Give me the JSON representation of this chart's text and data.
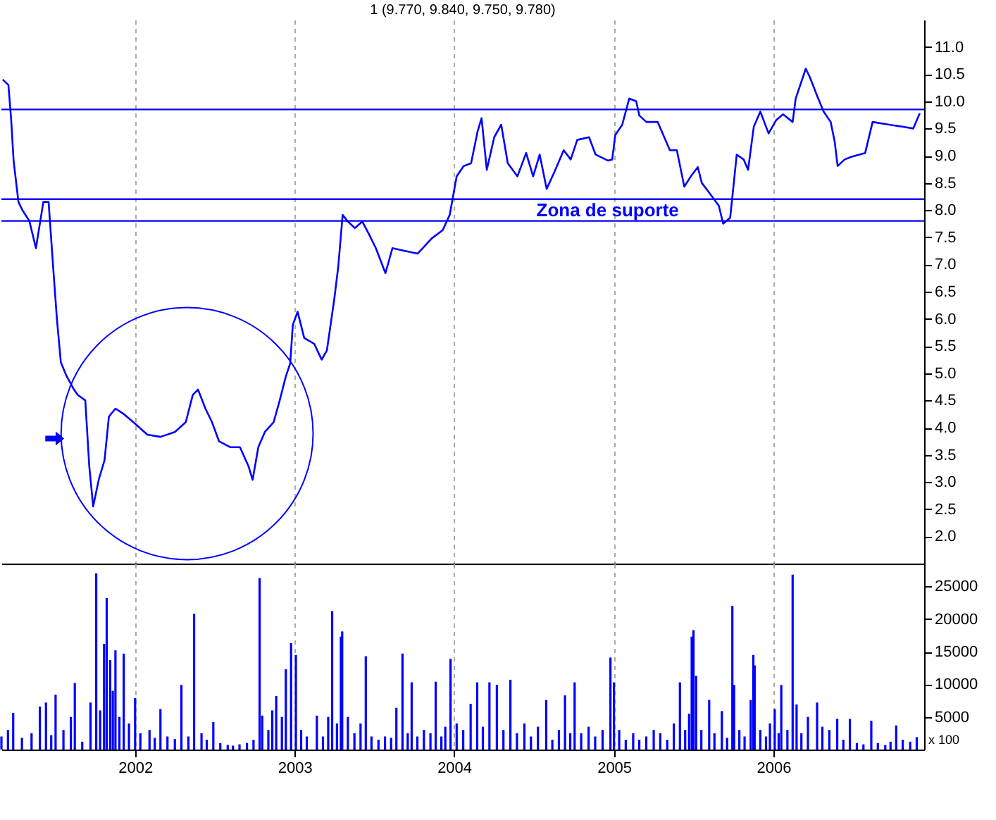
{
  "chart_data": [
    {
      "type": "line",
      "title": "1 (9.770, 9.840, 9.750, 9.780)",
      "x": [
        "2001-03-04",
        "2001-03-17",
        "2001-03-23",
        "2001-03-29",
        "2001-04-09",
        "2001-04-18",
        "2001-05-04",
        "2001-05-19",
        "2001-06-05",
        "2001-06-17",
        "2001-06-27",
        "2001-07-06",
        "2001-07-15",
        "2001-07-28",
        "2001-08-14",
        "2001-08-23",
        "2001-09-09",
        "2001-09-18",
        "2001-09-27",
        "2001-10-10",
        "2001-10-23",
        "2001-11-02",
        "2001-11-17",
        "2001-12-06",
        "2001-12-28",
        "2002-01-29",
        "2002-02-28",
        "2002-04-02",
        "2002-04-27",
        "2002-05-13",
        "2002-05-25",
        "2002-06-11",
        "2002-06-26",
        "2002-07-12",
        "2002-08-07",
        "2002-08-29",
        "2002-09-18",
        "2002-09-27",
        "2002-10-10",
        "2002-10-25",
        "2002-11-14",
        "2002-11-27",
        "2002-12-12",
        "2002-12-22",
        "2002-12-28",
        "2003-01-08",
        "2003-01-23",
        "2003-02-15",
        "2003-03-04",
        "2003-03-16",
        "2003-04-02",
        "2003-04-11",
        "2003-04-21",
        "2003-05-03",
        "2003-05-19",
        "2003-06-05",
        "2003-06-20",
        "2003-07-06",
        "2003-07-28",
        "2003-08-13",
        "2003-09-09",
        "2003-10-10",
        "2003-11-11",
        "2003-12-06",
        "2003-12-22",
        "2004-01-07",
        "2004-01-23",
        "2004-02-09",
        "2004-02-24",
        "2004-03-04",
        "2004-03-16",
        "2004-04-02",
        "2004-04-18",
        "2004-05-03",
        "2004-05-25",
        "2004-06-14",
        "2004-06-30",
        "2004-07-15",
        "2004-07-31",
        "2004-08-16",
        "2004-09-08",
        "2004-09-24",
        "2004-10-09",
        "2004-11-05",
        "2004-11-20",
        "2004-12-18",
        "2004-12-28",
        "2005-01-04",
        "2005-01-20",
        "2005-02-05",
        "2005-02-21",
        "2005-02-28",
        "2005-03-16",
        "2005-04-11",
        "2005-04-24",
        "2005-05-09",
        "2005-05-25",
        "2005-06-11",
        "2005-06-26",
        "2005-07-12",
        "2005-07-21",
        "2005-08-07",
        "2005-08-29",
        "2005-09-08",
        "2005-09-24",
        "2005-09-30",
        "2005-10-09",
        "2005-10-25",
        "2005-11-04",
        "2005-11-17",
        "2005-12-02",
        "2005-12-21",
        "2006-01-07",
        "2006-01-23",
        "2006-02-14",
        "2006-02-21",
        "2006-03-06",
        "2006-03-16",
        "2006-03-25",
        "2006-04-11",
        "2006-04-26",
        "2006-05-12",
        "2006-05-21",
        "2006-05-28",
        "2006-06-13",
        "2006-06-29",
        "2006-07-30",
        "2006-08-16",
        "2006-09-23",
        "2006-10-25",
        "2006-11-17",
        "2006-12-02"
      ],
      "series": [
        {
          "color": "#0000ff",
          "values": [
            10.4,
            10.3,
            9.7,
            8.9,
            8.15,
            8.0,
            7.8,
            7.3,
            8.15,
            8.15,
            7.0,
            6.0,
            5.2,
            4.95,
            4.7,
            4.6,
            4.5,
            3.3,
            2.55,
            3.05,
            3.4,
            4.2,
            4.35,
            4.25,
            4.1,
            3.87,
            3.83,
            3.92,
            4.1,
            4.6,
            4.7,
            4.35,
            4.1,
            3.75,
            3.64,
            3.64,
            3.28,
            3.04,
            3.64,
            3.92,
            4.1,
            4.47,
            4.94,
            5.18,
            5.89,
            6.13,
            5.65,
            5.54,
            5.25,
            5.42,
            6.37,
            6.96,
            7.91,
            7.79,
            7.67,
            7.79,
            7.56,
            7.3,
            6.84,
            7.3,
            7.25,
            7.2,
            7.48,
            7.63,
            7.91,
            8.62,
            8.81,
            8.86,
            9.45,
            9.69,
            8.74,
            9.34,
            9.57,
            8.86,
            8.62,
            9.05,
            8.62,
            9.02,
            8.39,
            8.67,
            9.1,
            8.93,
            9.29,
            9.34,
            9.02,
            8.91,
            8.93,
            9.38,
            9.57,
            10.05,
            10.0,
            9.74,
            9.62,
            9.62,
            9.38,
            9.1,
            9.1,
            8.43,
            8.62,
            8.79,
            8.5,
            8.32,
            8.08,
            7.75,
            7.86,
            8.32,
            9.02,
            8.93,
            8.74,
            9.53,
            9.81,
            9.41,
            9.65,
            9.76,
            9.62,
            10.05,
            10.36,
            10.6,
            10.45,
            10.1,
            9.81,
            9.62,
            9.27,
            8.81,
            8.93,
            8.98,
            9.05,
            9.62,
            9.57,
            9.53,
            9.5,
            9.78
          ]
        }
      ],
      "xlim": [
        "2001-03-01",
        "2006-12-12"
      ],
      "xticks": [
        {
          "value": "2002-01-01",
          "label": null
        },
        {
          "value": "2003-01-01",
          "label": null
        },
        {
          "value": "2004-01-01",
          "label": null
        },
        {
          "value": "2005-01-01",
          "label": null
        },
        {
          "value": "2006-01-01",
          "label": null
        }
      ],
      "ylim": [
        1.5,
        11.5
      ],
      "yticks": [
        {
          "value": 2,
          "label": "2.0"
        },
        2.5,
        {
          "value": 3,
          "label": "3.0"
        },
        3.5,
        {
          "value": 4,
          "label": "4.0"
        },
        4.5,
        {
          "value": 5,
          "label": "5.0"
        },
        5.5,
        {
          "value": 6,
          "label": "6.0"
        },
        6.5,
        {
          "value": 7,
          "label": "7.0"
        },
        7.5,
        {
          "value": 8,
          "label": "8.0"
        },
        8.5,
        {
          "value": 9,
          "label": "9.0"
        },
        9.5,
        {
          "value": 10,
          "label": "10.0"
        },
        10.5,
        {
          "value": 11,
          "label": "11.0"
        }
      ],
      "ref_lines": [
        {
          "axis": "y",
          "value": 9.85,
          "color": "#0000ff"
        },
        {
          "axis": "y",
          "value": 8.2,
          "color": "#0000ff",
          "label": "Zona de suporte"
        },
        {
          "axis": "y",
          "value": 7.8,
          "color": "#0000ff"
        }
      ],
      "grid": "x",
      "tick_labels": "y"
    },
    {
      "type": "bar",
      "color": "#0000ff",
      "x": [
        "2001-03-01",
        "2001-03-16",
        "2001-03-28",
        "2001-04-17",
        "2001-05-09",
        "2001-05-28",
        "2001-06-11",
        "2001-06-23",
        "2001-07-03",
        "2001-07-21",
        "2001-08-07",
        "2001-08-16",
        "2001-09-02",
        "2001-09-21",
        "2001-10-04",
        "2001-10-13",
        "2001-10-22",
        "2001-10-28",
        "2001-11-05",
        "2001-11-11",
        "2001-11-17",
        "2001-11-26",
        "2001-12-06",
        "2001-12-18",
        "2002-01-01",
        "2002-01-13",
        "2002-02-03",
        "2002-02-15",
        "2002-02-28",
        "2002-03-16",
        "2002-04-02",
        "2002-04-17",
        "2002-05-03",
        "2002-05-16",
        "2002-06-02",
        "2002-06-14",
        "2002-06-29",
        "2002-07-15",
        "2002-08-01",
        "2002-08-13",
        "2002-08-28",
        "2002-09-14",
        "2002-09-29",
        "2002-10-13",
        "2002-10-19",
        "2002-11-02",
        "2002-11-11",
        "2002-11-20",
        "2002-12-03",
        "2002-12-12",
        "2002-12-24",
        "2003-01-04",
        "2003-01-16",
        "2003-01-29",
        "2003-02-21",
        "2003-03-07",
        "2003-03-19",
        "2003-03-28",
        "2003-04-08",
        "2003-04-17",
        "2003-04-20",
        "2003-05-03",
        "2003-05-18",
        "2003-06-01",
        "2003-06-13",
        "2003-06-26",
        "2003-07-12",
        "2003-07-27",
        "2003-08-10",
        "2003-08-22",
        "2003-09-05",
        "2003-09-17",
        "2003-09-26",
        "2003-10-09",
        "2003-10-24",
        "2003-11-08",
        "2003-11-20",
        "2003-12-03",
        "2003-12-12",
        "2003-12-24",
        "2004-01-07",
        "2004-01-22",
        "2004-02-08",
        "2004-02-23",
        "2004-03-07",
        "2004-03-22",
        "2004-04-08",
        "2004-04-23",
        "2004-05-09",
        "2004-05-24",
        "2004-06-10",
        "2004-06-25",
        "2004-07-11",
        "2004-07-30",
        "2004-08-13",
        "2004-08-28",
        "2004-09-11",
        "2004-09-23",
        "2004-10-03",
        "2004-10-18",
        "2004-11-04",
        "2004-11-19",
        "2004-12-06",
        "2004-12-24",
        "2005-01-01",
        "2005-01-13",
        "2005-01-28",
        "2005-02-14",
        "2005-02-28",
        "2005-03-16",
        "2005-04-02",
        "2005-04-17",
        "2005-05-03",
        "2005-05-18",
        "2005-06-01",
        "2005-06-13",
        "2005-06-22",
        "2005-06-28",
        "2005-07-02",
        "2005-07-08",
        "2005-07-20",
        "2005-08-07",
        "2005-08-19",
        "2005-09-05",
        "2005-09-17",
        "2005-09-29",
        "2005-10-03",
        "2005-10-15",
        "2005-10-27",
        "2005-11-10",
        "2005-11-16",
        "2005-11-19",
        "2005-12-02",
        "2005-12-15",
        "2005-12-24",
        "2006-01-04",
        "2006-01-13",
        "2006-01-19",
        "2006-02-02",
        "2006-02-14",
        "2006-02-23",
        "2006-03-06",
        "2006-03-21",
        "2006-04-11",
        "2006-04-23",
        "2006-05-09",
        "2006-05-27",
        "2006-06-10",
        "2006-06-25",
        "2006-07-11",
        "2006-07-26",
        "2006-08-13",
        "2006-08-28",
        "2006-09-14",
        "2006-09-26",
        "2006-10-09",
        "2006-10-24",
        "2006-11-10",
        "2006-11-25"
      ],
      "values": [
        2000,
        3000,
        5600,
        1800,
        2500,
        6600,
        7200,
        2200,
        8400,
        3000,
        5000,
        10200,
        1200,
        7200,
        27000,
        6000,
        16200,
        23200,
        13700,
        9000,
        15200,
        5000,
        14700,
        4000,
        7900,
        2500,
        3000,
        1800,
        6200,
        2000,
        1600,
        9900,
        2000,
        20800,
        2500,
        1500,
        4200,
        1000,
        700,
        600,
        800,
        1000,
        1500,
        26300,
        5200,
        3000,
        6000,
        8200,
        5000,
        12300,
        16300,
        14500,
        3000,
        2000,
        5200,
        2000,
        5000,
        21200,
        4000,
        17300,
        18100,
        5000,
        2500,
        4000,
        14300,
        2000,
        1500,
        2000,
        1800,
        6400,
        14700,
        2500,
        10300,
        2000,
        3000,
        2500,
        10400,
        2000,
        3500,
        13900,
        4000,
        3000,
        7000,
        10300,
        3500,
        10300,
        9900,
        3000,
        10700,
        2500,
        4000,
        2000,
        3500,
        7600,
        1500,
        3000,
        8300,
        2500,
        10300,
        2500,
        3500,
        2000,
        3000,
        14100,
        10300,
        3000,
        1500,
        2500,
        1500,
        2000,
        3000,
        2500,
        1500,
        4000,
        10300,
        3000,
        5500,
        17300,
        18300,
        11300,
        3000,
        7600,
        2500,
        5900,
        1800,
        22000,
        9900,
        3000,
        2000,
        7600,
        14500,
        12900,
        3000,
        2000,
        4000,
        6200,
        2500,
        9900,
        3000,
        26800,
        6900,
        2500,
        5000,
        7200,
        3500,
        3000,
        4700,
        1500,
        4700,
        1000,
        800,
        4400,
        1000,
        700,
        1200,
        3700,
        1500,
        1200,
        1900
      ],
      "xlim": [
        "2001-03-01",
        "2006-12-12"
      ],
      "xticks": [
        {
          "value": "2002-01-01",
          "label": "2002"
        },
        {
          "value": "2003-01-01",
          "label": "2003"
        },
        {
          "value": "2004-01-01",
          "label": "2004"
        },
        {
          "value": "2005-01-01",
          "label": "2005"
        },
        {
          "value": "2006-01-01",
          "label": "2006"
        }
      ],
      "ylim": [
        0,
        28500
      ],
      "yticks": [
        5000,
        10000,
        15000,
        20000,
        25000
      ],
      "annotations": [
        "x 100"
      ],
      "grid": "x"
    }
  ]
}
